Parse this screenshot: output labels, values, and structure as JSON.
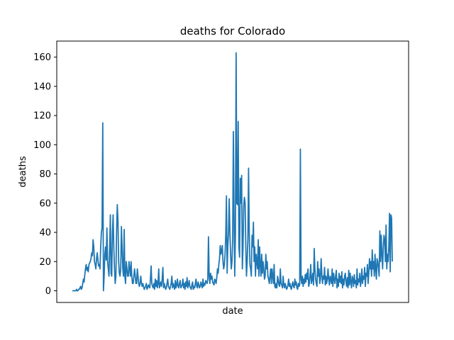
{
  "chart_data": {
    "type": "line",
    "title": "deaths for Colorado",
    "xlabel": "date",
    "ylabel": "deaths",
    "ylim": [
      -8,
      171
    ],
    "yticks": [
      0,
      20,
      40,
      60,
      80,
      100,
      120,
      140,
      160
    ],
    "xticks_shown": false,
    "grid": false,
    "legend": "none",
    "series": [
      {
        "color": "#1f77b4",
        "values": [
          0,
          0,
          0,
          0,
          0,
          0,
          1,
          0,
          0,
          1,
          1,
          2,
          3,
          1,
          2,
          5,
          8,
          6,
          11,
          15,
          18,
          14,
          16,
          13,
          18,
          19,
          20,
          22,
          26,
          24,
          35,
          30,
          20,
          18,
          15,
          22,
          26,
          21,
          17,
          18,
          15,
          30,
          40,
          43,
          115,
          0,
          10,
          25,
          30,
          21,
          43,
          20,
          15,
          10,
          30,
          52,
          12,
          10,
          40,
          52,
          30,
          15,
          5,
          10,
          40,
          59,
          48,
          20,
          12,
          10,
          15,
          44,
          30,
          15,
          10,
          42,
          10,
          5,
          20,
          15,
          10,
          10,
          20,
          15,
          10,
          20,
          10,
          5,
          5,
          10,
          15,
          10,
          5,
          5,
          15,
          10,
          5,
          3,
          5,
          10,
          5,
          3,
          5,
          3,
          1,
          2,
          3,
          5,
          1,
          2,
          4,
          3,
          2,
          8,
          17,
          5,
          3,
          2,
          5,
          1,
          8,
          3,
          7,
          2,
          5,
          15,
          2,
          4,
          6,
          3,
          8,
          16,
          2,
          5,
          3,
          1,
          2,
          5,
          8,
          3,
          2,
          1,
          3,
          5,
          10,
          2,
          5,
          3,
          1,
          7,
          2,
          4,
          8,
          3,
          2,
          5,
          7,
          2,
          3,
          4,
          8,
          2,
          5,
          1,
          6,
          3,
          9,
          2,
          4,
          7,
          3,
          2,
          1,
          4,
          6,
          1,
          3,
          2,
          5,
          8,
          3,
          2,
          6,
          4,
          2,
          3,
          6,
          4,
          2,
          8,
          3,
          5,
          4,
          7,
          6,
          5,
          8,
          37,
          10,
          5,
          12,
          8,
          10,
          6,
          5,
          4,
          8,
          7,
          5,
          9,
          15,
          12,
          18,
          22,
          31,
          25,
          27,
          31,
          20,
          15,
          18,
          25,
          38,
          65,
          12,
          31,
          40,
          63,
          40,
          25,
          15,
          20,
          35,
          109,
          50,
          10,
          40,
          163,
          60,
          59,
          116,
          30,
          23,
          77,
          60,
          79,
          15,
          30,
          58,
          64,
          60,
          30,
          10,
          20,
          35,
          84,
          40,
          18,
          15,
          10,
          38,
          30,
          47,
          20,
          30,
          10,
          25,
          20,
          15,
          35,
          10,
          30,
          18,
          10,
          25,
          12,
          20,
          15,
          8,
          10,
          25,
          15,
          20,
          10,
          8,
          5,
          10,
          15,
          5,
          15,
          10,
          5,
          18,
          3,
          2,
          5,
          2,
          10,
          7,
          4,
          3,
          15,
          5,
          4,
          2,
          10,
          4,
          2,
          5,
          3,
          1,
          2,
          4,
          8,
          3,
          5,
          2,
          1,
          4,
          6,
          3,
          2,
          8,
          4,
          6,
          2,
          1,
          5,
          3,
          4,
          97,
          8,
          5,
          10,
          3,
          8,
          5,
          11,
          6,
          12,
          8,
          15,
          3,
          5,
          10,
          18,
          5,
          8,
          12,
          4,
          29,
          15,
          8,
          5,
          3,
          20,
          10,
          15,
          5,
          8,
          22,
          12,
          5,
          10,
          8,
          16,
          4,
          10,
          5,
          8,
          15,
          8,
          4,
          10,
          8,
          5,
          15,
          3,
          12,
          8,
          5,
          10,
          14,
          2,
          8,
          3,
          12,
          6,
          10,
          5,
          13,
          2,
          8,
          4,
          10,
          12,
          6,
          3,
          9,
          2,
          14,
          4,
          12,
          6,
          2,
          10,
          8,
          3,
          11,
          5,
          7,
          2,
          15,
          4,
          8,
          6,
          12,
          3,
          7,
          15,
          5,
          10,
          8,
          16,
          3,
          12,
          10,
          18,
          5,
          12,
          22,
          15,
          20,
          10,
          28,
          15,
          20,
          10,
          25,
          15,
          8,
          22,
          20,
          15,
          10,
          41,
          20,
          38,
          25,
          15,
          30,
          38,
          35,
          20,
          45,
          15,
          25,
          20,
          30,
          53,
          13,
          52,
          50,
          20
        ]
      }
    ]
  }
}
